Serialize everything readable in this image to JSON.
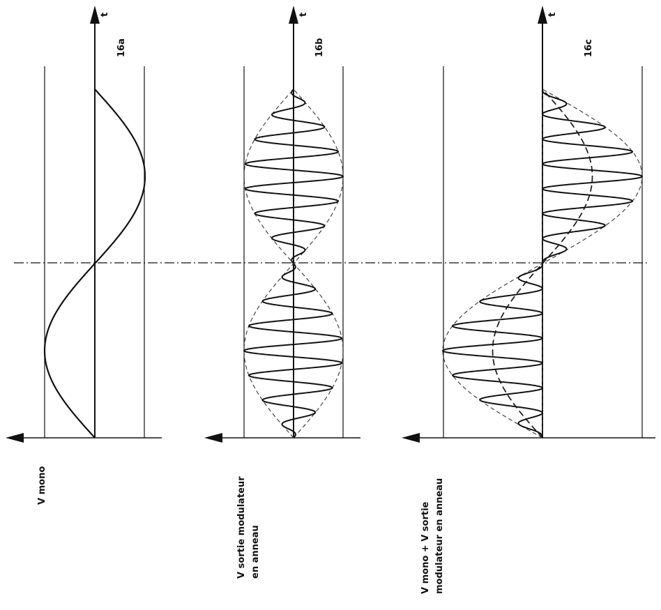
{
  "figure": {
    "panels": [
      {
        "id": "16a",
        "label": "16a",
        "y_label_lines": [
          "V mono"
        ],
        "curves": [
          {
            "kind": "sine",
            "cycles": 1,
            "amplitude": 1
          }
        ]
      },
      {
        "id": "16b",
        "label": "16b",
        "y_label_lines": [
          "V sortie modulateur",
          "en anneau"
        ],
        "curves": [
          {
            "kind": "dsb",
            "carrier_cycles": 14,
            "amplitude": 1
          },
          {
            "kind": "envelope",
            "style": "dashed"
          }
        ]
      },
      {
        "id": "16c",
        "label": "16c",
        "y_label_lines": [
          "V mono + V sortie",
          "modulateur en anneau"
        ],
        "curves": [
          {
            "kind": "sum",
            "carrier_cycles": 14,
            "amplitude": 1
          },
          {
            "kind": "envelope",
            "style": "dashed"
          },
          {
            "kind": "sine",
            "style": "dashed-bold",
            "cycles": 1,
            "amplitude": 0.5
          }
        ]
      }
    ],
    "axis_arrow_label": "t",
    "colors": {
      "ink": "#111111",
      "dashed": "#333333"
    }
  }
}
